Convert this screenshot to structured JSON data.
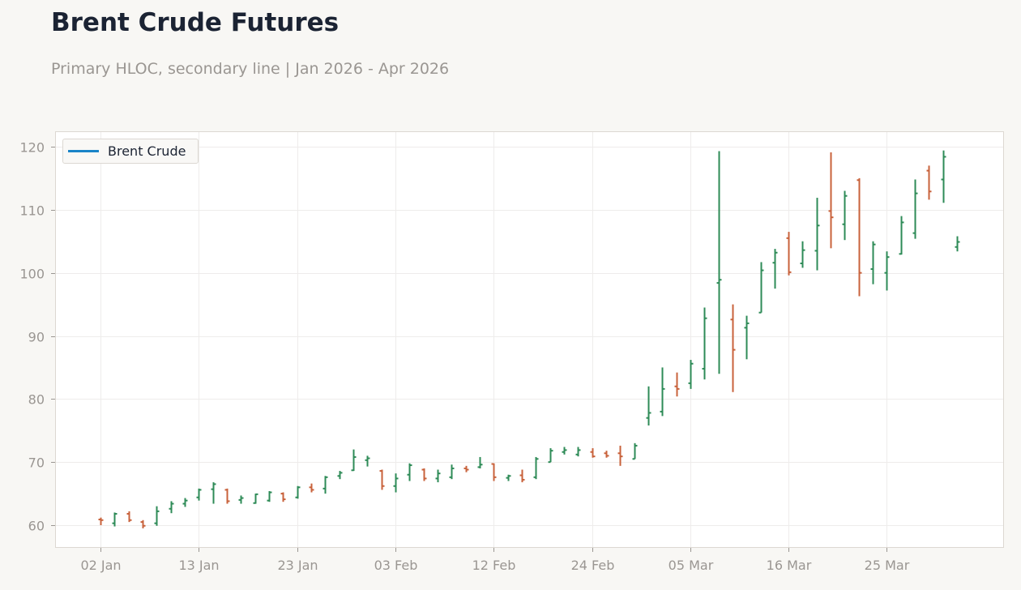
{
  "header": {
    "title": "Brent Crude Futures",
    "subtitle": "Primary HLOC, secondary line | Jan 2026 - Apr 2026"
  },
  "legend": {
    "items": [
      {
        "label": "Brent Crude",
        "color": "#1a84c8"
      }
    ]
  },
  "colors": {
    "up": "#2e8b57",
    "down": "#c8623b",
    "grid": "#eeeceb",
    "frame": "#dcd8d2",
    "plot_bg": "#ffffff",
    "page_bg": "#f8f7f4"
  },
  "chart_data": {
    "type": "ohlc",
    "title": "Brent Crude Futures",
    "subtitle": "Primary HLOC, secondary line | Jan 2026 - Apr 2026",
    "xlabel": "",
    "ylabel": "",
    "ylim": [
      56.5,
      122.5
    ],
    "yticks": [
      60,
      70,
      80,
      90,
      100,
      110,
      120
    ],
    "xtick_labels": [
      {
        "label": "02 Jan",
        "index": 0
      },
      {
        "label": "13 Jan",
        "index": 7
      },
      {
        "label": "23 Jan",
        "index": 14
      },
      {
        "label": "03 Feb",
        "index": 21
      },
      {
        "label": "12 Feb",
        "index": 28
      },
      {
        "label": "24 Feb",
        "index": 35
      },
      {
        "label": "05 Mar",
        "index": 42
      },
      {
        "label": "16 Mar",
        "index": 49
      },
      {
        "label": "25 Mar",
        "index": 56
      }
    ],
    "grid": true,
    "legend_position": "upper left",
    "series": [
      {
        "name": "Brent Crude",
        "ohlc": [
          [
            60.9,
            61.2,
            60.0,
            60.8
          ],
          [
            60.3,
            62.0,
            59.8,
            61.8
          ],
          [
            61.8,
            62.2,
            60.5,
            60.8
          ],
          [
            60.5,
            60.8,
            59.5,
            59.9
          ],
          [
            60.3,
            63.0,
            59.9,
            62.2
          ],
          [
            62.6,
            63.8,
            61.9,
            63.4
          ],
          [
            63.4,
            64.3,
            62.9,
            63.9
          ],
          [
            64.4,
            65.8,
            63.9,
            65.6
          ],
          [
            65.7,
            66.8,
            63.4,
            66.5
          ],
          [
            65.6,
            65.8,
            63.4,
            63.8
          ],
          [
            64.0,
            64.7,
            63.4,
            64.3
          ],
          [
            63.5,
            65.0,
            63.4,
            64.9
          ],
          [
            63.9,
            65.4,
            63.7,
            65.2
          ],
          [
            65.0,
            65.2,
            63.7,
            64.1
          ],
          [
            64.4,
            66.2,
            64.2,
            66.0
          ],
          [
            66.0,
            66.6,
            65.2,
            65.6
          ],
          [
            65.8,
            67.8,
            65.0,
            67.6
          ],
          [
            67.8,
            68.6,
            67.3,
            68.3
          ],
          [
            68.7,
            72.0,
            68.6,
            70.8
          ],
          [
            70.3,
            71.0,
            69.3,
            70.6
          ],
          [
            68.6,
            68.8,
            65.6,
            66.2
          ],
          [
            66.2,
            68.2,
            65.2,
            67.4
          ],
          [
            68.0,
            69.8,
            67.0,
            69.5
          ],
          [
            68.8,
            69.0,
            67.0,
            67.4
          ],
          [
            67.4,
            68.8,
            66.8,
            68.2
          ],
          [
            67.6,
            69.6,
            67.3,
            69.0
          ],
          [
            69.0,
            69.4,
            68.4,
            68.8
          ],
          [
            69.2,
            70.8,
            69.0,
            69.6
          ],
          [
            69.7,
            69.8,
            67.0,
            67.6
          ],
          [
            67.5,
            68.0,
            67.0,
            67.8
          ],
          [
            67.9,
            68.8,
            66.8,
            67.2
          ],
          [
            67.6,
            70.8,
            67.3,
            70.5
          ],
          [
            70.0,
            72.2,
            70.0,
            71.8
          ],
          [
            71.6,
            72.4,
            71.2,
            71.9
          ],
          [
            71.2,
            72.4,
            70.9,
            71.9
          ],
          [
            71.6,
            72.2,
            70.7,
            70.9
          ],
          [
            71.4,
            71.8,
            70.7,
            71.0
          ],
          [
            71.4,
            72.6,
            69.4,
            70.9
          ],
          [
            70.5,
            73.0,
            70.5,
            72.6
          ],
          [
            77.0,
            82.0,
            75.8,
            77.8
          ],
          [
            78.0,
            85.0,
            77.3,
            81.6
          ],
          [
            82.0,
            84.2,
            80.4,
            81.6
          ],
          [
            82.5,
            86.2,
            81.6,
            85.6
          ],
          [
            84.8,
            94.5,
            83.1,
            92.8
          ],
          [
            98.4,
            119.3,
            84.0,
            98.9
          ],
          [
            92.6,
            95.0,
            81.1,
            87.8
          ],
          [
            91.3,
            93.2,
            86.3,
            92.0
          ],
          [
            93.7,
            101.7,
            93.7,
            100.4
          ],
          [
            101.6,
            103.8,
            97.5,
            103.2
          ],
          [
            105.5,
            106.5,
            99.6,
            100.1
          ],
          [
            101.5,
            105.0,
            100.8,
            103.6
          ],
          [
            103.5,
            111.9,
            100.4,
            107.5
          ],
          [
            109.8,
            119.1,
            103.9,
            108.8
          ],
          [
            107.7,
            113.0,
            105.2,
            112.2
          ],
          [
            114.7,
            115.0,
            96.3,
            100.0
          ],
          [
            100.6,
            105.0,
            98.2,
            104.5
          ],
          [
            100.0,
            103.4,
            97.2,
            102.5
          ],
          [
            103.0,
            109.0,
            102.9,
            108.0
          ],
          [
            106.3,
            114.8,
            105.4,
            112.6
          ],
          [
            116.2,
            117.0,
            111.6,
            112.9
          ],
          [
            114.8,
            119.4,
            111.1,
            118.4
          ],
          [
            104.1,
            105.8,
            103.4,
            104.9
          ]
        ],
        "ohlc_fields": [
          "open",
          "high",
          "low",
          "close"
        ]
      }
    ]
  }
}
